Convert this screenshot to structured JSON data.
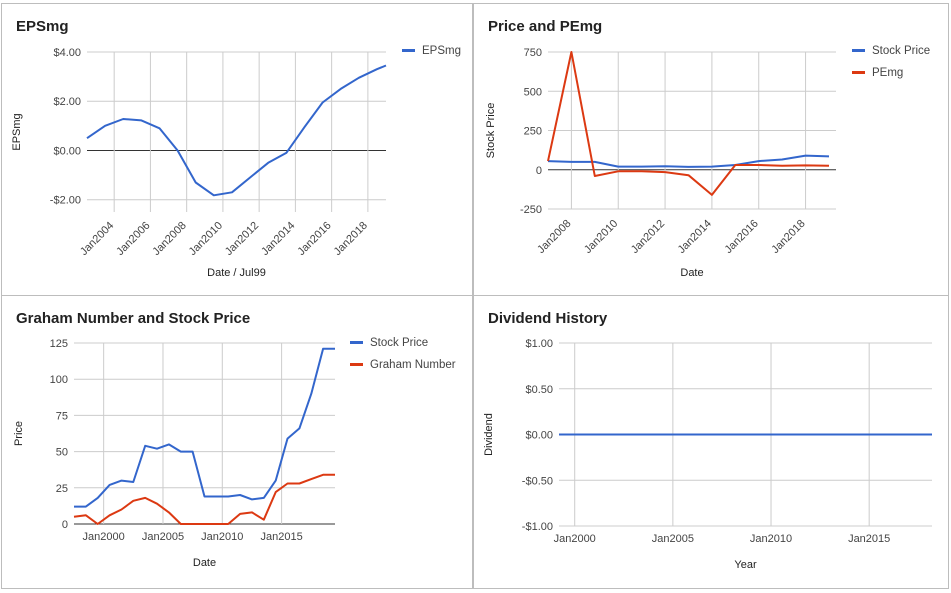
{
  "chart_data": [
    {
      "id": "eps",
      "type": "line",
      "title": "EPSmg",
      "xlabel": "Date / Jul99",
      "ylabel": "EPSmg",
      "ylim": [
        -2.5,
        4
      ],
      "yticks": [
        -2,
        0,
        2,
        4
      ],
      "ytick_labels": [
        "-$2.00",
        "$0.00",
        "$2.00",
        "$4.00"
      ],
      "xlim": [
        2002.5,
        2019.0
      ],
      "xticks": [
        2004,
        2006,
        2008,
        2010,
        2012,
        2014,
        2016,
        2018
      ],
      "xtick_labels": [
        "Jan2004",
        "Jan2006",
        "Jan2008",
        "Jan2010",
        "Jan2012",
        "Jan2014",
        "Jan2016",
        "Jan2018"
      ],
      "legend_position": "top-right",
      "colors": {
        "series0": "#3366cc"
      },
      "series": [
        {
          "name": "EPSmg",
          "x": [
            2002.5,
            2003.5,
            2004.5,
            2005.5,
            2006.5,
            2007.5,
            2008.5,
            2009.5,
            2010.5,
            2011.5,
            2012.5,
            2013.5,
            2014.5,
            2015.5,
            2016.5,
            2017.5,
            2018.5,
            2019.0
          ],
          "values": [
            0.5,
            1.0,
            1.28,
            1.22,
            0.9,
            0.0,
            -1.3,
            -1.82,
            -1.7,
            -1.1,
            -0.5,
            -0.1,
            0.95,
            1.95,
            2.5,
            2.95,
            3.3,
            3.45
          ]
        }
      ]
    },
    {
      "id": "price_pe",
      "type": "line",
      "title": "Price and PEmg",
      "xlabel": "Date",
      "ylabel": "Stock Price",
      "ylim": [
        -250,
        750
      ],
      "yticks": [
        -250,
        0,
        250,
        500,
        750
      ],
      "ytick_labels": [
        "-250",
        "0",
        "250",
        "500",
        "750"
      ],
      "xlim": [
        2007.0,
        2019.3
      ],
      "xticks": [
        2008,
        2010,
        2012,
        2014,
        2016,
        2018
      ],
      "xtick_labels": [
        "Jan2008",
        "Jan2010",
        "Jan2012",
        "Jan2014",
        "Jan2016",
        "Jan2018"
      ],
      "legend_position": "top-right",
      "colors": {
        "series0": "#3366cc",
        "series1": "#dc3912"
      },
      "series": [
        {
          "name": "Stock Price",
          "x": [
            2007.0,
            2008.0,
            2009.0,
            2010.0,
            2011.0,
            2012.0,
            2013.0,
            2014.0,
            2015.0,
            2016.0,
            2017.0,
            2018.0,
            2019.0
          ],
          "values": [
            55,
            50,
            50,
            20,
            20,
            22,
            18,
            20,
            30,
            55,
            65,
            90,
            85
          ]
        },
        {
          "name": "PEmg",
          "x": [
            2007.0,
            2008.0,
            2009.0,
            2010.0,
            2011.0,
            2012.0,
            2013.0,
            2014.0,
            2015.0,
            2016.0,
            2017.0,
            2018.0,
            2019.0
          ],
          "values": [
            55,
            750,
            -40,
            -10,
            -10,
            -15,
            -35,
            -160,
            30,
            30,
            25,
            28,
            25
          ]
        }
      ]
    },
    {
      "id": "graham",
      "type": "line",
      "title": "Graham Number and Stock Price",
      "xlabel": "Date",
      "ylabel": "Price",
      "ylim": [
        0,
        125
      ],
      "yticks": [
        0,
        25,
        50,
        75,
        100,
        125
      ],
      "ytick_labels": [
        "0",
        "25",
        "50",
        "75",
        "100",
        "125"
      ],
      "xlim": [
        1997.5,
        2019.5
      ],
      "xticks": [
        2000,
        2005,
        2010,
        2015
      ],
      "xtick_labels": [
        "Jan2000",
        "Jan2005",
        "Jan2010",
        "Jan2015"
      ],
      "legend_position": "top-right",
      "colors": {
        "series0": "#3366cc",
        "series1": "#dc3912"
      },
      "series": [
        {
          "name": "Stock Price",
          "x": [
            1997.5,
            1998.5,
            1999.5,
            2000.5,
            2001.5,
            2002.5,
            2003.5,
            2004.5,
            2005.5,
            2006.5,
            2007.5,
            2008.5,
            2009.5,
            2010.5,
            2011.5,
            2012.5,
            2013.5,
            2014.5,
            2015.5,
            2016.5,
            2017.5,
            2018.5,
            2019.5
          ],
          "values": [
            12,
            12,
            18,
            27,
            30,
            29,
            54,
            52,
            55,
            50,
            50,
            19,
            19,
            19,
            20,
            17,
            18,
            30,
            59,
            66,
            90,
            121,
            121
          ]
        },
        {
          "name": "Graham Number",
          "x": [
            1997.5,
            1998.5,
            1999.5,
            2000.5,
            2001.5,
            2002.5,
            2003.5,
            2004.5,
            2005.5,
            2006.5,
            2007.5,
            2008.5,
            2009.5,
            2010.5,
            2011.5,
            2012.5,
            2013.5,
            2014.5,
            2015.5,
            2016.5,
            2017.5,
            2018.5,
            2019.5
          ],
          "values": [
            5,
            6,
            0,
            6,
            10,
            16,
            18,
            14,
            8,
            0,
            0,
            0,
            0,
            0,
            7,
            8,
            3,
            22,
            28,
            28,
            31,
            34,
            34
          ]
        }
      ]
    },
    {
      "id": "dividend",
      "type": "line",
      "title": "Dividend History",
      "xlabel": "Year",
      "ylabel": "Dividend",
      "ylim": [
        -1,
        1
      ],
      "yticks": [
        -1,
        -0.5,
        0,
        0.5,
        1
      ],
      "ytick_labels": [
        "-$1.00",
        "-$0.50",
        "$0.00",
        "$0.50",
        "$1.00"
      ],
      "xlim": [
        1999.2,
        2018.2
      ],
      "xticks": [
        2000,
        2005,
        2010,
        2015
      ],
      "xtick_labels": [
        "Jan2000",
        "Jan2005",
        "Jan2010",
        "Jan2015"
      ],
      "legend_position": "none",
      "colors": {
        "series0": "#3366cc"
      },
      "series": [
        {
          "name": "",
          "x": [
            1999.2,
            2018.2
          ],
          "values": [
            0,
            0
          ]
        }
      ]
    }
  ]
}
